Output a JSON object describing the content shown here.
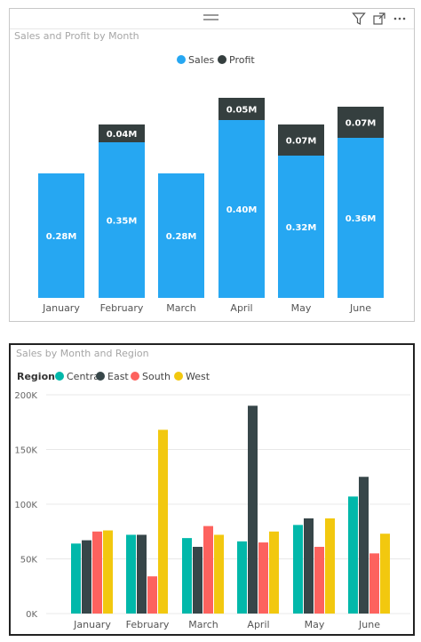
{
  "visual1": {
    "title": "Sales and Profit by Month",
    "header_icons": [
      "drag-handle-icon",
      "filter-icon",
      "focus-mode-icon",
      "more-options-icon"
    ],
    "chart_data": {
      "type": "bar",
      "stacked": true,
      "categories": [
        "January",
        "February",
        "March",
        "April",
        "May",
        "June"
      ],
      "series": [
        {
          "name": "Sales",
          "color": "#26A7F2",
          "values": [
            0.28,
            0.35,
            0.28,
            0.4,
            0.32,
            0.36
          ],
          "labels": [
            "0.28M",
            "0.35M",
            "0.28M",
            "0.40M",
            "0.32M",
            "0.36M"
          ]
        },
        {
          "name": "Profit",
          "color": "#353F3F",
          "values": [
            0,
            0.04,
            0,
            0.05,
            0.07,
            0.07
          ],
          "labels": [
            "",
            "0.04M",
            "",
            "0.05M",
            "0.07M",
            "0.07M"
          ]
        }
      ],
      "ylim": [
        0,
        0.45
      ],
      "legend_position": "top-center"
    }
  },
  "visual2": {
    "title": "Sales by Month and Region",
    "chart_data": {
      "type": "bar",
      "legend_title": "Region",
      "categories": [
        "January",
        "February",
        "March",
        "April",
        "May",
        "June"
      ],
      "series": [
        {
          "name": "Central",
          "color": "#01B8AA",
          "values": [
            64,
            72,
            69,
            66,
            81,
            107
          ]
        },
        {
          "name": "East",
          "color": "#374649",
          "values": [
            67,
            72,
            61,
            190,
            87,
            125
          ]
        },
        {
          "name": "South",
          "color": "#FD625E",
          "values": [
            75,
            34,
            80,
            65,
            61,
            55
          ]
        },
        {
          "name": "West",
          "color": "#F2C80F",
          "values": [
            76,
            168,
            72,
            75,
            87,
            73
          ]
        }
      ],
      "ylim": [
        0,
        200
      ],
      "y_ticks": [
        "0K",
        "50K",
        "100K",
        "150K",
        "200K"
      ],
      "legend_position": "top-left",
      "grid": true
    }
  }
}
